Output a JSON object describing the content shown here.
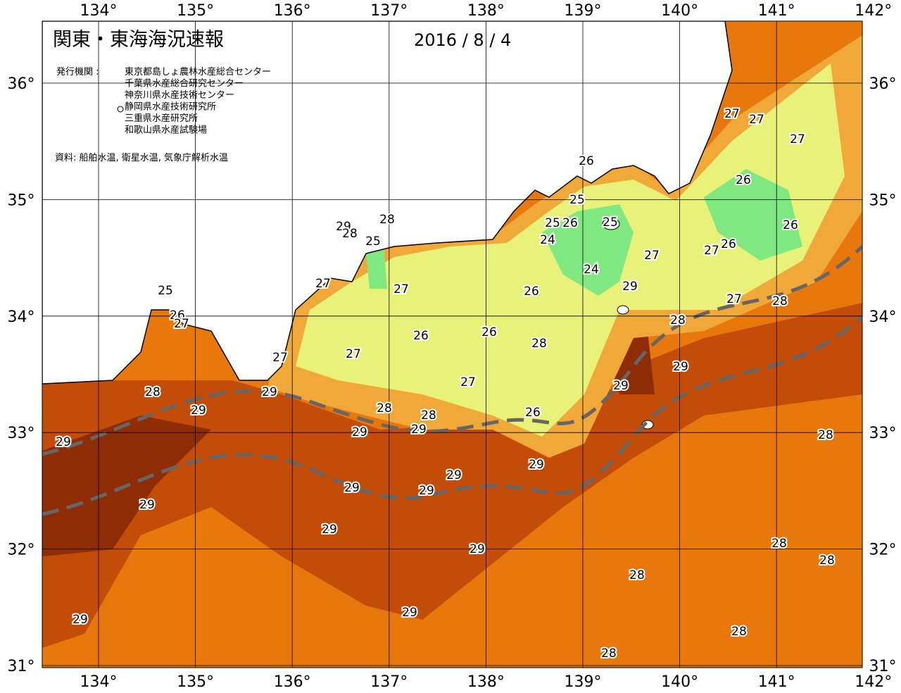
{
  "header": {
    "title": "関東・東海海況速報",
    "date": "2016 / 8 / 4",
    "publisher_label": "発行機関 :",
    "publishers": [
      "東京都島しょ農林水産総合センター",
      "千葉県水産総合研究センター",
      "神奈川県水産技術センター",
      "静岡県水産技術研究所",
      "三重県水産研究所",
      "和歌山県水産試験場"
    ],
    "source": "資料: 船舶水温, 衛星水温, 気象庁解析水温"
  },
  "map": {
    "longitudes": [
      {
        "value": 134,
        "label": "134°"
      },
      {
        "value": 135,
        "label": "135°"
      },
      {
        "value": 136,
        "label": "136°"
      },
      {
        "value": 137,
        "label": "137°"
      },
      {
        "value": 138,
        "label": "138°"
      },
      {
        "value": 139,
        "label": "139°"
      },
      {
        "value": 140,
        "label": "140°"
      },
      {
        "value": 141,
        "label": "141°"
      },
      {
        "value": 142,
        "label": "142°"
      }
    ],
    "latitudes": [
      {
        "value": 36,
        "label": "36°"
      },
      {
        "value": 35,
        "label": "35°"
      },
      {
        "value": 34,
        "label": "34°"
      },
      {
        "value": 33,
        "label": "33°"
      },
      {
        "value": 32,
        "label": "32°"
      },
      {
        "value": 31,
        "label": "31°"
      }
    ],
    "contour_labels": [
      27,
      27,
      27,
      26,
      26,
      25,
      26,
      25,
      25,
      26,
      24,
      26,
      27,
      27,
      29,
      28,
      28,
      25,
      24,
      29,
      27,
      27,
      26,
      25,
      27,
      28,
      26,
      27,
      28,
      26,
      26,
      28,
      27,
      27,
      29,
      27,
      29,
      28,
      29,
      29,
      28,
      28,
      26,
      29,
      29,
      28,
      29,
      29,
      29,
      29,
      29,
      29,
      29,
      29,
      28,
      28,
      28,
      29,
      29,
      28,
      28
    ]
  }
}
